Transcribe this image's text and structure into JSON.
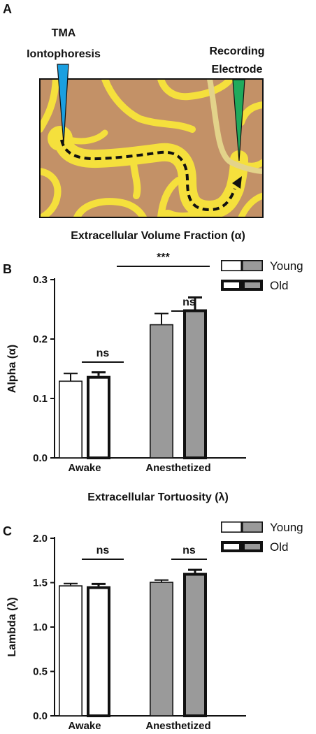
{
  "panel_a": {
    "letter": "A",
    "probe_left_label_1": "TMA",
    "probe_left_label_2": "Iontophoresis",
    "probe_right_label_1": "Recording",
    "probe_right_label_2": "Electrode",
    "colors": {
      "tissue": "#c39167",
      "space": "#f5e03c",
      "left_probe": "#1a9fe0",
      "right_probe": "#1faa5c"
    }
  },
  "chart_data": [
    {
      "type": "bar",
      "panel": "B",
      "title": "Extracellular Volume Fraction (α)",
      "ylabel": "Alpha (α)",
      "ylim": [
        0,
        0.3
      ],
      "yticks": [
        "0.0",
        "0.1",
        "0.2",
        "0.3"
      ],
      "categories": [
        "Awake",
        "Anesthetized"
      ],
      "series": [
        {
          "name": "Young",
          "values": [
            0.13,
            0.225
          ],
          "errors": [
            0.012,
            0.018
          ]
        },
        {
          "name": "Old",
          "values": [
            0.138,
            0.25
          ],
          "errors": [
            0.006,
            0.02
          ]
        }
      ],
      "annotations": [
        {
          "text": "ns",
          "between": "Awake young vs old"
        },
        {
          "text": "ns",
          "between": "Anesthetized young vs old"
        },
        {
          "text": "***",
          "between": "Awake vs Anesthetized"
        }
      ],
      "legend": "top-right"
    },
    {
      "type": "bar",
      "panel": "C",
      "title": "Extracellular Tortuosity (λ)",
      "ylabel": "Lambda (λ)",
      "ylim": [
        0,
        2.0
      ],
      "yticks": [
        "0.0",
        "0.5",
        "1.0",
        "1.5",
        "2.0"
      ],
      "categories": [
        "Awake",
        "Anesthetized"
      ],
      "series": [
        {
          "name": "Young",
          "values": [
            1.47,
            1.51
          ],
          "errors": [
            0.02,
            0.02
          ]
        },
        {
          "name": "Old",
          "values": [
            1.46,
            1.61
          ],
          "errors": [
            0.025,
            0.035
          ]
        }
      ],
      "annotations": [
        {
          "text": "ns",
          "between": "Awake young vs old"
        },
        {
          "text": "ns",
          "between": "Anesthetized young vs old"
        }
      ],
      "legend": "top-right"
    }
  ],
  "colors": {
    "awake_fill": "#ffffff",
    "anesthetized_fill": "#9a9a9a",
    "outline": "#111111"
  }
}
